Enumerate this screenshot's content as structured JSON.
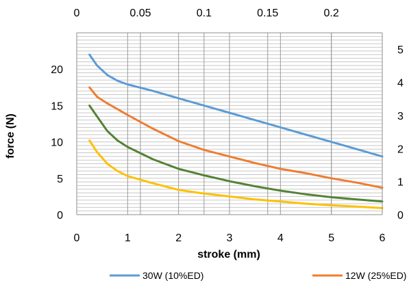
{
  "chart_data": {
    "type": "line",
    "xlabel": "stroke (mm)",
    "ylabel": "force (N)",
    "xlim": [
      0,
      6
    ],
    "ylim": [
      0,
      25
    ],
    "x_ticks": [
      "0",
      "1",
      "2",
      "3",
      "4",
      "5",
      "6"
    ],
    "y_ticks": [
      "0",
      "5",
      "10",
      "15",
      "20"
    ],
    "secondary_x": {
      "position": "top",
      "lim": [
        0,
        0.24
      ],
      "ticks": [
        "0",
        "0.05",
        "0.1",
        "0.15",
        "0.2"
      ]
    },
    "secondary_y": {
      "position": "right",
      "lim": [
        0,
        5.5
      ],
      "ticks": [
        "0",
        "1",
        "2",
        "3",
        "4",
        "5"
      ]
    },
    "grid": true,
    "legend_position": "bottom",
    "series": [
      {
        "name": "30W (10%ED)",
        "color": "#5b9bd5",
        "x": [
          0.25,
          0.4,
          0.6,
          0.8,
          1.0,
          1.5,
          2.0,
          2.5,
          3.0,
          3.5,
          4.0,
          4.5,
          5.0,
          5.5,
          6.0
        ],
        "y": [
          22.0,
          20.5,
          19.2,
          18.4,
          17.9,
          17.0,
          16.0,
          15.0,
          14.0,
          13.0,
          12.0,
          11.0,
          10.0,
          9.0,
          8.0
        ]
      },
      {
        "name": "12W (25%ED)",
        "color": "#ed7d31",
        "x": [
          0.25,
          0.4,
          0.6,
          0.8,
          1.0,
          1.5,
          2.0,
          2.5,
          3.0,
          3.5,
          4.0,
          4.5,
          5.0,
          5.5,
          6.0
        ],
        "y": [
          17.5,
          16.2,
          15.3,
          14.5,
          13.7,
          11.8,
          10.1,
          8.9,
          8.0,
          7.1,
          6.3,
          5.7,
          5.0,
          4.4,
          3.7
        ]
      },
      {
        "name": "",
        "color": "#548235",
        "x": [
          0.25,
          0.4,
          0.6,
          0.8,
          1.0,
          1.5,
          2.0,
          2.5,
          3.0,
          3.5,
          4.0,
          4.5,
          5.0,
          5.5,
          6.0
        ],
        "y": [
          15.0,
          13.5,
          11.5,
          10.2,
          9.3,
          7.6,
          6.3,
          5.4,
          4.6,
          3.9,
          3.3,
          2.8,
          2.4,
          2.1,
          1.8
        ]
      },
      {
        "name": "",
        "color": "#ffc000",
        "x": [
          0.25,
          0.4,
          0.6,
          0.8,
          1.0,
          1.5,
          2.0,
          2.5,
          3.0,
          3.5,
          4.0,
          4.5,
          5.0,
          5.5,
          6.0
        ],
        "y": [
          10.2,
          8.6,
          7.0,
          6.0,
          5.3,
          4.3,
          3.4,
          2.9,
          2.5,
          2.1,
          1.8,
          1.5,
          1.3,
          1.1,
          0.9
        ]
      }
    ]
  }
}
